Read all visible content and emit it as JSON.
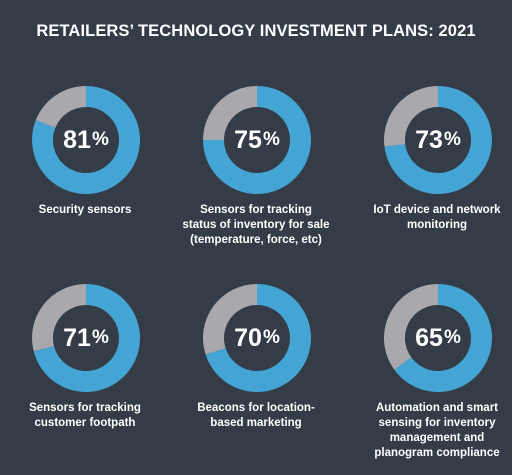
{
  "title": "RETAILERS’ TECHNOLOGY INVESTMENT PLANS: 2021",
  "colors": {
    "background": "#333c47",
    "filled": "#44a5d4",
    "remaining": "#a8a8ad",
    "text": "#ffffff"
  },
  "chart_data": [
    {
      "type": "pie",
      "label": "Security sensors",
      "value": 81,
      "unit": "%"
    },
    {
      "type": "pie",
      "label": "Sensors for tracking\nstatus of inventory for sale\n(temperature, force, etc)",
      "value": 75,
      "unit": "%"
    },
    {
      "type": "pie",
      "label": "IoT device and network\nmonitoring",
      "value": 73,
      "unit": "%"
    },
    {
      "type": "pie",
      "label": "Sensors for tracking\ncustomer footpath",
      "value": 71,
      "unit": "%"
    },
    {
      "type": "pie",
      "label": "Beacons for location-\nbased marketing",
      "value": 70,
      "unit": "%"
    },
    {
      "type": "pie",
      "label": "Automation and smart\nsensing for inventory\nmanagement and\nplanogram compliance",
      "value": 65,
      "unit": "%"
    }
  ]
}
